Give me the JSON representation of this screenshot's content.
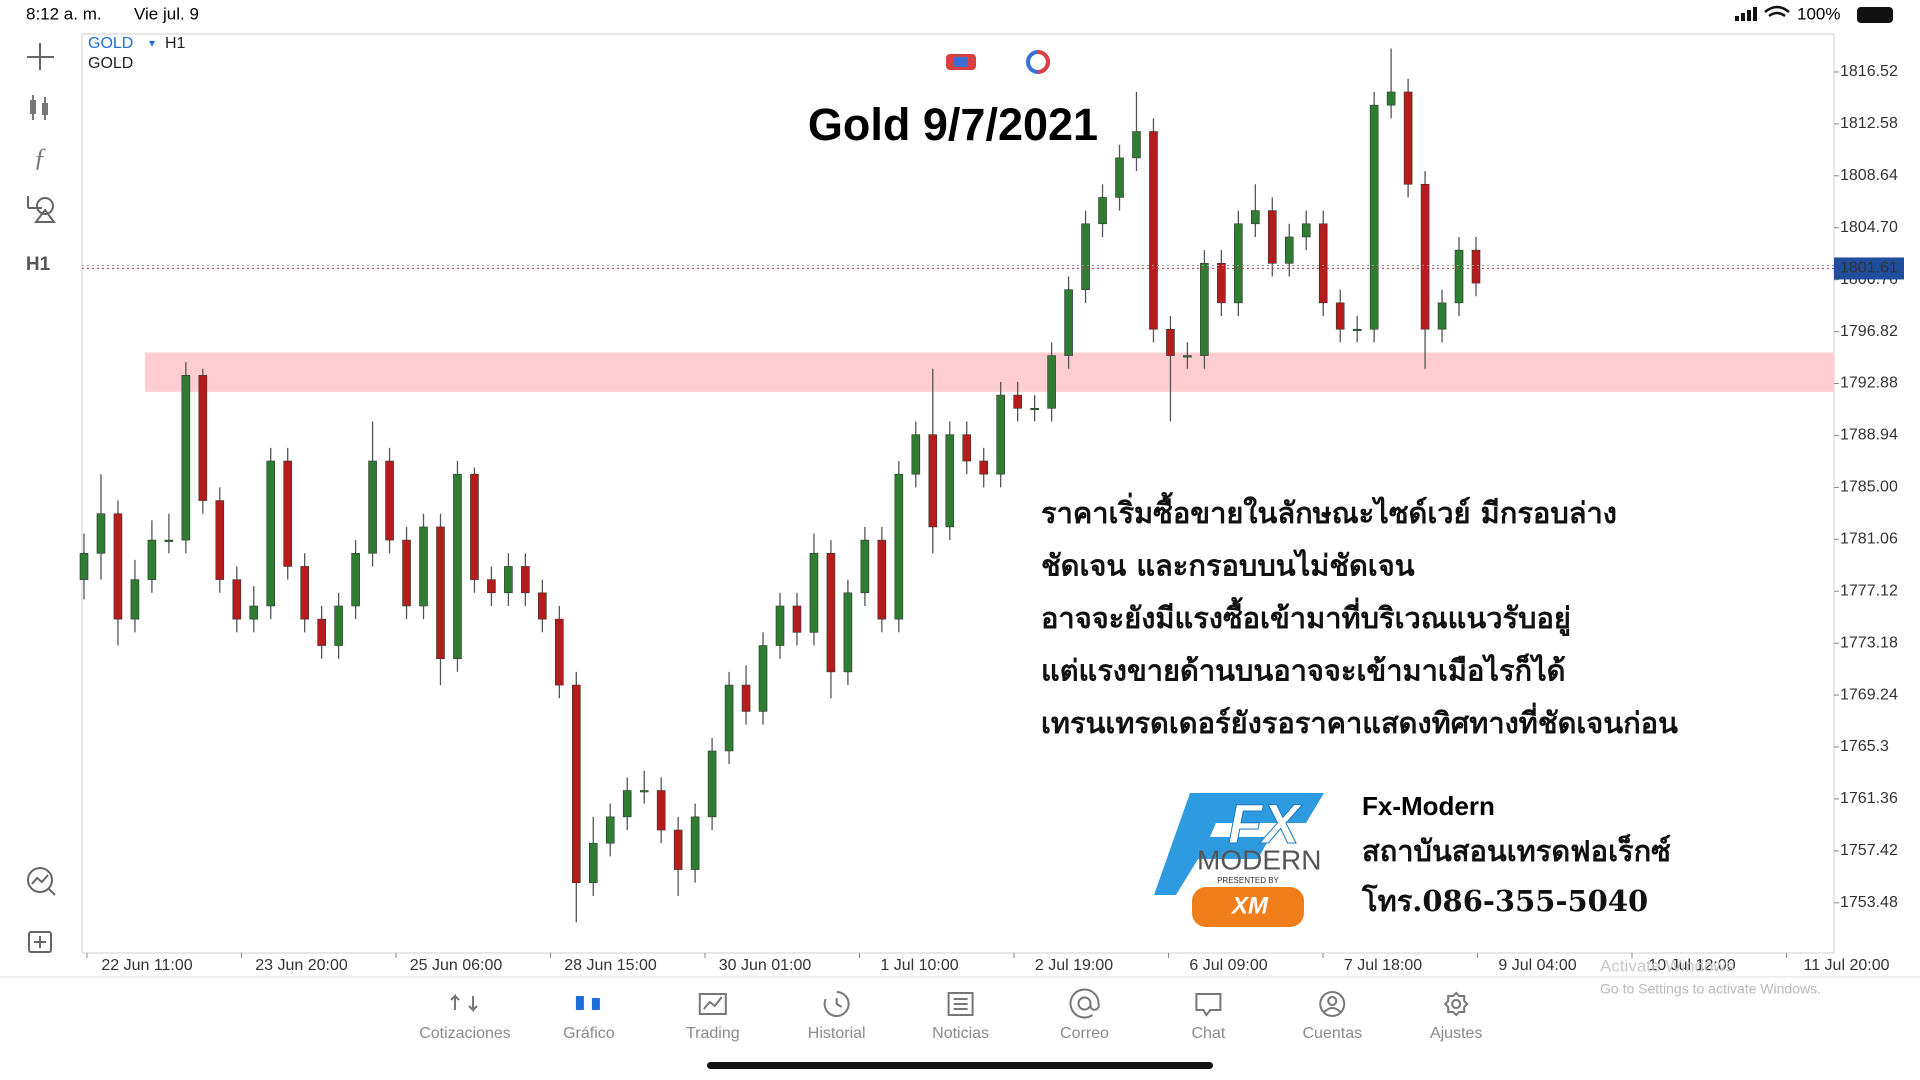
{
  "status_bar": {
    "time": "8:12 a. m.",
    "date": "Vie jul. 9",
    "battery": "100%"
  },
  "symbol": {
    "name": "GOLD",
    "arrow": "▾",
    "timeframe": "H1",
    "description": "GOLD"
  },
  "toolbar": {
    "timeframe": "H1"
  },
  "chart_data": {
    "type": "candlestick",
    "title": "Gold 9/7/2021",
    "open": [
      1778,
      1780,
      1783,
      1775,
      1778,
      1781,
      1781,
      1793.5,
      1784,
      1778,
      1775,
      1776,
      1787,
      1779,
      1775,
      1773,
      1776,
      1780,
      1787,
      1781,
      1776,
      1782,
      1772,
      1786,
      1778,
      1777,
      1779,
      1777,
      1775,
      1770,
      1755,
      1758,
      1760,
      1762,
      1762,
      1759,
      1756,
      1760,
      1765,
      1770,
      1768,
      1773,
      1776,
      1774,
      1780,
      1771,
      1777,
      1781,
      1775,
      1786,
      1789,
      1782,
      1789,
      1787,
      1786,
      1792,
      1791,
      1791,
      1795,
      1800,
      1805,
      1807,
      1810,
      1812,
      1797,
      1795,
      1795,
      1802,
      1799,
      1805,
      1806,
      1802,
      1804,
      1805,
      1799,
      1797,
      1797,
      1814,
      1815,
      1808,
      1797,
      1799,
      1803
    ],
    "high": [
      1781.5,
      1786,
      1784,
      1779.5,
      1782.5,
      1783,
      1794.5,
      1794,
      1785,
      1779,
      1777.5,
      1788,
      1788,
      1780,
      1776,
      1777,
      1781,
      1790,
      1788,
      1782,
      1783,
      1783,
      1787,
      1786.5,
      1779,
      1780,
      1780,
      1778,
      1776,
      1771,
      1760,
      1761,
      1763,
      1763.5,
      1763,
      1760,
      1761,
      1766,
      1771,
      1771.5,
      1774,
      1777,
      1777,
      1781.5,
      1781,
      1778,
      1782,
      1782,
      1787,
      1790,
      1794,
      1790,
      1790,
      1788,
      1793,
      1793,
      1792,
      1796,
      1801,
      1806,
      1808,
      1811,
      1815,
      1813,
      1798,
      1796,
      1803,
      1803,
      1806,
      1808,
      1807,
      1805,
      1806,
      1806,
      1800,
      1798,
      1815,
      1818.3,
      1816,
      1809,
      1800,
      1804,
      1804
    ],
    "low": [
      1776.5,
      1778,
      1773,
      1774,
      1777,
      1780,
      1780,
      1783,
      1777,
      1774,
      1774,
      1775,
      1778,
      1774,
      1772,
      1772,
      1775,
      1779,
      1780,
      1775,
      1775,
      1770,
      1771,
      1777,
      1776,
      1776,
      1776,
      1774,
      1769,
      1752,
      1754,
      1757,
      1759,
      1761,
      1758,
      1754,
      1755,
      1759,
      1764,
      1767,
      1767,
      1772,
      1773,
      1773,
      1769,
      1770,
      1776,
      1774,
      1774,
      1785,
      1780,
      1781,
      1786,
      1785,
      1785,
      1790,
      1790,
      1790,
      1794,
      1799,
      1804,
      1806,
      1809,
      1796,
      1790,
      1794,
      1794,
      1798,
      1798,
      1804,
      1801,
      1801,
      1803,
      1798,
      1796,
      1796,
      1796,
      1813,
      1807,
      1794,
      1796,
      1798,
      1799.5
    ],
    "close": [
      1780,
      1783,
      1775,
      1778,
      1781,
      1781,
      1793.5,
      1784,
      1778,
      1775,
      1776,
      1787,
      1779,
      1775,
      1773,
      1776,
      1780,
      1787,
      1781,
      1776,
      1782,
      1772,
      1786,
      1778,
      1777,
      1779,
      1777,
      1775,
      1770,
      1755,
      1758,
      1760,
      1762,
      1762,
      1759,
      1756,
      1760,
      1765,
      1770,
      1768,
      1773,
      1776,
      1774,
      1780,
      1771,
      1777,
      1781,
      1775,
      1786,
      1789,
      1782,
      1789,
      1787,
      1786,
      1792,
      1791,
      1791,
      1795,
      1800,
      1805,
      1807,
      1810,
      1812,
      1797,
      1795,
      1795,
      1802,
      1799,
      1805,
      1806,
      1802,
      1804,
      1805,
      1799,
      1797,
      1797,
      1814,
      1815,
      1808,
      1797,
      1799,
      1803,
      1800.5
    ],
    "up_color": "#2e7d32",
    "down_color": "#b71c1c",
    "ylim": [
      1749.67,
      1819.4
    ],
    "yticks": [
      1816.52,
      1812.58,
      1808.64,
      {
        "value": 1804.7,
        "label": "1804.70"
      },
      1800.76,
      1796.82,
      1792.88,
      1788.94,
      {
        "value": 1785,
        "label": "1785.00"
      },
      1781.06,
      1777.12,
      1773.18,
      1769.24,
      1765.3,
      1761.36,
      1757.42,
      1753.48
    ],
    "xtick_labels": [
      "22 Jun 11:00",
      "23 Jun 20:00",
      "25 Jun 06:00",
      "28 Jun 15:00",
      "30 Jun 01:00",
      "1 Jul 10:00",
      "2 Jul 19:00",
      "6 Jul 09:00",
      "7 Jul 18:00",
      "9 Jul 04:00",
      "10 Jul 12:00",
      "11 Jul 20:00"
    ],
    "current_price": 1801.61,
    "support_zone": [
      1792.25,
      1795.23
    ],
    "support_zone_color": "#ffcdd2",
    "annotation": [
      "ราคาเริ่มซื้อขายในลักษณะไซด์เวย์ มีกรอบล่าง",
      "ชัดเจน และกรอบบนไม่ชัดเจน",
      "อาจจะยังมีแรงซื้อเข้ามาที่บริเวณแนวรับอยู่",
      "แต่แรงขายด้านบนอาจจะเข้ามาเมือไรก็ได้",
      "เทรนเทรดเดอร์ยังรอราคาแสดงทิศทางที่ชัดเจนก่อน"
    ]
  },
  "logo": {
    "fx": "FX",
    "modern": "MODERN",
    "presented": "PRESENTED BY",
    "xm": "XM",
    "name": "Fx-Modern",
    "thai_name": "สถาบันสอนเทรดฟอเร็กซ์",
    "phone": "โทร.086-355-5040"
  },
  "watermark": {
    "title": "Activate Windows",
    "subtitle": "Go to Settings to activate Windows."
  },
  "nav": [
    "Cotizaciones",
    "Gráfico",
    "Trading",
    "Historial",
    "Noticias",
    "Correo",
    "Chat",
    "Cuentas",
    "Ajustes"
  ]
}
